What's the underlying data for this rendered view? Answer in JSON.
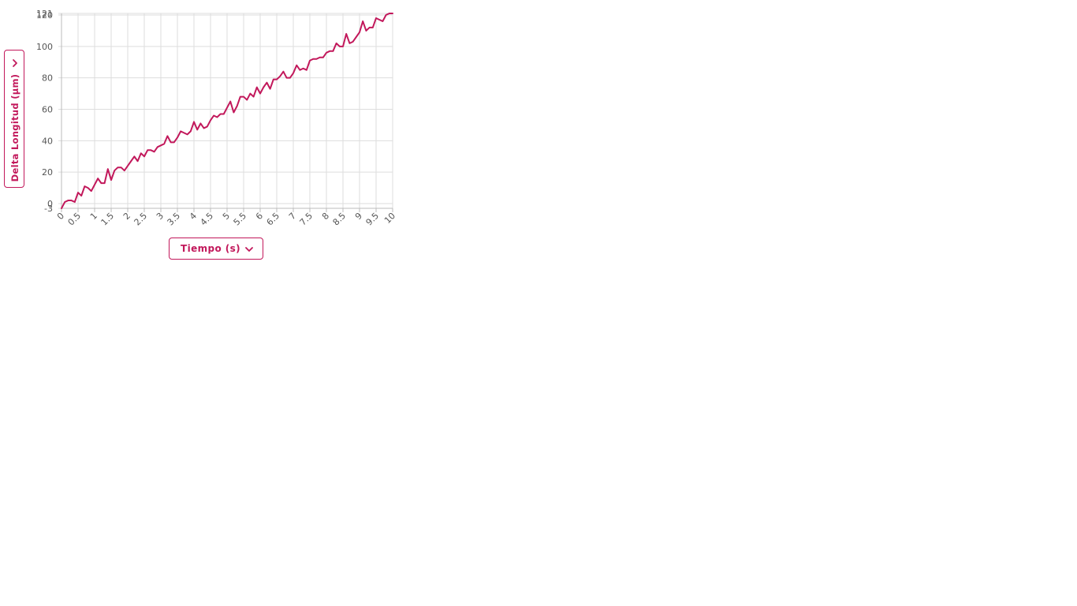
{
  "chart_data": {
    "type": "line",
    "xlabel": "Tiempo (s)",
    "ylabel": "Delta Longitud (μm)",
    "xlim": [
      0,
      10
    ],
    "ylim": [
      -3,
      121
    ],
    "x_ticks": [
      "0",
      "0.5",
      "1",
      "1.5",
      "2",
      "2.5",
      "3",
      "3.5",
      "4",
      "4.5",
      "5",
      "5.5",
      "6",
      "6.5",
      "7",
      "7.5",
      "8",
      "8.5",
      "9",
      "9.5",
      "10"
    ],
    "y_ticks": [
      "-3",
      "0",
      "20",
      "40",
      "60",
      "80",
      "100",
      "120",
      "121"
    ],
    "grid": true,
    "line_color": "#c2185b",
    "series": [
      {
        "x": [
          0,
          0.1,
          0.2,
          0.3,
          0.4,
          0.5,
          0.6,
          0.7,
          0.8,
          0.9,
          1.0,
          1.1,
          1.2,
          1.3,
          1.4,
          1.5,
          1.6,
          1.7,
          1.8,
          1.9,
          2.0,
          2.1,
          2.2,
          2.3,
          2.4,
          2.5,
          2.6,
          2.7,
          2.8,
          2.9,
          3.0,
          3.1,
          3.2,
          3.3,
          3.4,
          3.5,
          3.6,
          3.7,
          3.8,
          3.9,
          4.0,
          4.1,
          4.2,
          4.3,
          4.4,
          4.5,
          4.6,
          4.7,
          4.8,
          4.9,
          5.0,
          5.1,
          5.2,
          5.3,
          5.4,
          5.5,
          5.6,
          5.7,
          5.8,
          5.9,
          6.0,
          6.1,
          6.2,
          6.3,
          6.4,
          6.5,
          6.6,
          6.7,
          6.8,
          6.9,
          7.0,
          7.1,
          7.2,
          7.3,
          7.4,
          7.5,
          7.6,
          7.7,
          7.8,
          7.9,
          8.0,
          8.1,
          8.2,
          8.3,
          8.4,
          8.5,
          8.6,
          8.7,
          8.8,
          8.9,
          9.0,
          9.1,
          9.2,
          9.3,
          9.4,
          9.5,
          9.6,
          9.7,
          9.8,
          9.9,
          10.0
        ],
        "y": [
          -3,
          1,
          2,
          2,
          1,
          7,
          5,
          11,
          10,
          8,
          12,
          16,
          13,
          13,
          22,
          15,
          21,
          23,
          23,
          21,
          24,
          27,
          30,
          27,
          32,
          30,
          34,
          34,
          33,
          36,
          37,
          38,
          43,
          39,
          39,
          42,
          46,
          45,
          44,
          46,
          52,
          47,
          51,
          48,
          49,
          53,
          56,
          55,
          57,
          57,
          61,
          65,
          58,
          62,
          68,
          68,
          66,
          70,
          68,
          74,
          70,
          74,
          77,
          73,
          79,
          79,
          81,
          84,
          80,
          80,
          83,
          88,
          85,
          86,
          85,
          91,
          92,
          92,
          93,
          93,
          96,
          97,
          97,
          102,
          100,
          100,
          108,
          102,
          103,
          106,
          109,
          116,
          110,
          112,
          112,
          118,
          117,
          116,
          120,
          121,
          121
        ]
      }
    ]
  },
  "controls": {
    "y_axis_selector": {
      "label": "Delta Longitud (μm)"
    },
    "x_axis_selector": {
      "label": "Tiempo (s)"
    }
  }
}
